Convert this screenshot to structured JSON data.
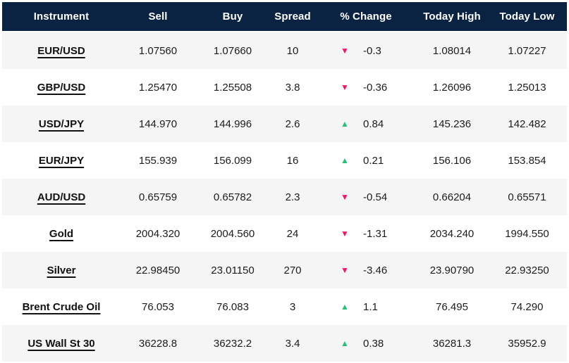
{
  "table": {
    "columns": [
      "Instrument",
      "Sell",
      "Buy",
      "Spread",
      "% Change",
      "Today High",
      "Today Low"
    ],
    "rows": [
      {
        "instrument": "EUR/USD",
        "sell": "1.07560",
        "buy": "1.07660",
        "spread": "10",
        "direction": "down",
        "change": "-0.3",
        "today_high": "1.08014",
        "today_low": "1.07227"
      },
      {
        "instrument": "GBP/USD",
        "sell": "1.25470",
        "buy": "1.25508",
        "spread": "3.8",
        "direction": "down",
        "change": "-0.36",
        "today_high": "1.26096",
        "today_low": "1.25013"
      },
      {
        "instrument": "USD/JPY",
        "sell": "144.970",
        "buy": "144.996",
        "spread": "2.6",
        "direction": "up",
        "change": "0.84",
        "today_high": "145.236",
        "today_low": "142.482"
      },
      {
        "instrument": "EUR/JPY",
        "sell": "155.939",
        "buy": "156.099",
        "spread": "16",
        "direction": "up",
        "change": "0.21",
        "today_high": "156.106",
        "today_low": "153.854"
      },
      {
        "instrument": "AUD/USD",
        "sell": "0.65759",
        "buy": "0.65782",
        "spread": "2.3",
        "direction": "down",
        "change": "-0.54",
        "today_high": "0.66204",
        "today_low": "0.65571"
      },
      {
        "instrument": "Gold",
        "sell": "2004.320",
        "buy": "2004.560",
        "spread": "24",
        "direction": "down",
        "change": "-1.31",
        "today_high": "2034.240",
        "today_low": "1994.550"
      },
      {
        "instrument": "Silver",
        "sell": "22.98450",
        "buy": "23.01150",
        "spread": "270",
        "direction": "down",
        "change": "-3.46",
        "today_high": "23.90790",
        "today_low": "22.93250"
      },
      {
        "instrument": "Brent Crude Oil",
        "sell": "76.053",
        "buy": "76.083",
        "spread": "3",
        "direction": "up",
        "change": "1.1",
        "today_high": "76.495",
        "today_low": "74.290"
      },
      {
        "instrument": "US Wall St 30",
        "sell": "36228.8",
        "buy": "36232.2",
        "spread": "3.4",
        "direction": "up",
        "change": "0.38",
        "today_high": "36281.3",
        "today_low": "35952.9"
      }
    ]
  },
  "icons": {
    "up_arrow": "▲",
    "down_arrow": "▼"
  },
  "colors": {
    "header_bg": "#0a2342",
    "stripe_bg": "#f5f5f5",
    "text": "#1c1c1c",
    "up": "#25bf76",
    "down": "#f4136b"
  }
}
